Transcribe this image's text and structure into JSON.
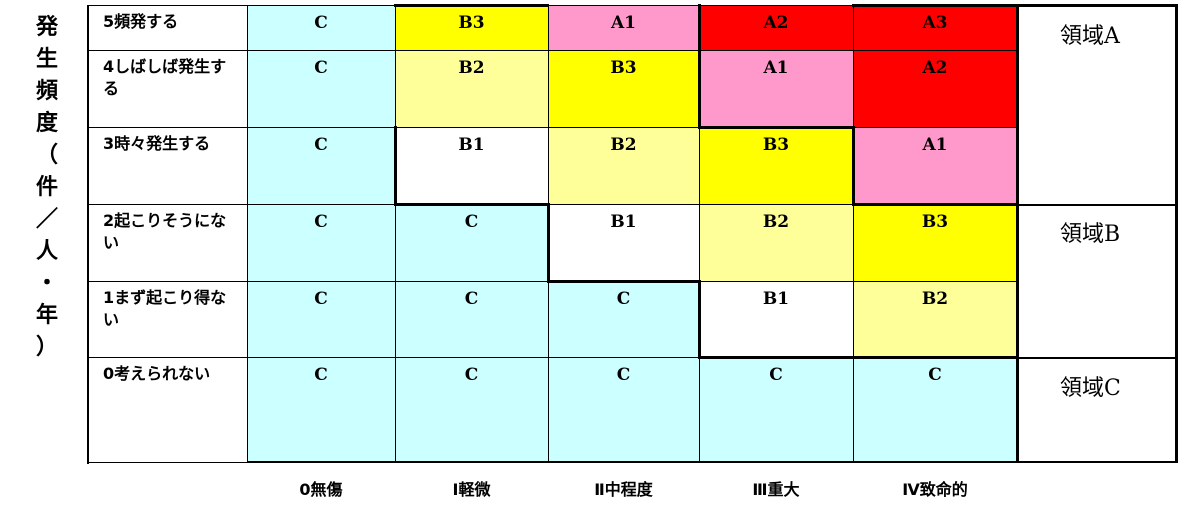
{
  "y_axis_label": [
    "発",
    "生",
    "頻",
    "度",
    "（",
    "件",
    "／",
    "人",
    "・",
    "年",
    "）"
  ],
  "rows": [
    {
      "label": "5頻発する",
      "cells": [
        "C",
        "B3",
        "A1",
        "A2",
        "A3"
      ]
    },
    {
      "label": "4しばしば発生する",
      "cells": [
        "C",
        "B2",
        "B3",
        "A1",
        "A2"
      ]
    },
    {
      "label": "3時々発生する",
      "cells": [
        "C",
        "B1",
        "B2",
        "B3",
        "A1"
      ]
    },
    {
      "label": "2起こりそうにない",
      "cells": [
        "C",
        "C",
        "B1",
        "B2",
        "B3"
      ]
    },
    {
      "label": "1まず起こり得ない",
      "cells": [
        "C",
        "C",
        "C",
        "B1",
        "B2"
      ]
    },
    {
      "label": "0考えられない",
      "cells": [
        "C",
        "C",
        "C",
        "C",
        "C"
      ]
    }
  ],
  "columns": [
    "0無傷",
    "Ⅰ軽微",
    "Ⅱ中程度",
    "Ⅲ重大",
    "Ⅳ致命的"
  ],
  "regions": [
    "領域A",
    "領域B",
    "領域C"
  ],
  "colors": {
    "C": "#ccffff",
    "B1": "#ffffff",
    "B2": "#ffff99",
    "B3": "#ffff00",
    "A1": "#ff99cc",
    "A2": "#ff0000",
    "A3": "#ff0000"
  }
}
